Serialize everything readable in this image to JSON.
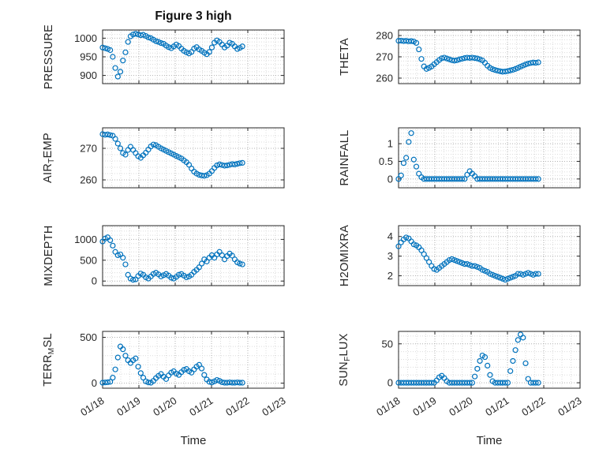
{
  "chart_data": {
    "type": "scatter",
    "title": "Figure 3 high",
    "xlabel": "Time",
    "marker": "open-circle",
    "marker_color": "#0072BD",
    "grid": {
      "major_color": "#b0b0b0",
      "minor_color": "#dcdcdc",
      "style": "dotted",
      "minor": true
    },
    "x_axis": {
      "lim": [
        0,
        5
      ],
      "tick_values": [
        0,
        1,
        2,
        3,
        4,
        5
      ],
      "tick_labels": [
        "01/18",
        "01/19",
        "01/20",
        "01/21",
        "01/22",
        "01/23"
      ],
      "minor_step": 0.25,
      "units": "days since 01/18"
    },
    "x": [
      0,
      0.07,
      0.14,
      0.21,
      0.28,
      0.35,
      0.42,
      0.49,
      0.56,
      0.63,
      0.7,
      0.77,
      0.84,
      0.91,
      0.98,
      1.05,
      1.12,
      1.19,
      1.26,
      1.33,
      1.4,
      1.47,
      1.54,
      1.61,
      1.68,
      1.75,
      1.82,
      1.89,
      1.96,
      2.03,
      2.1,
      2.17,
      2.24,
      2.31,
      2.38,
      2.45,
      2.52,
      2.59,
      2.66,
      2.73,
      2.8,
      2.87,
      2.94,
      3.01,
      3.08,
      3.15,
      3.22,
      3.29,
      3.36,
      3.43,
      3.5,
      3.57,
      3.64,
      3.71,
      3.78,
      3.85
    ],
    "subplots": [
      {
        "id": "pressure",
        "label": "PRESSURE",
        "ylabel_segments": [
          {
            "text": "PRESSURE",
            "sub": false
          }
        ],
        "ylim": [
          878,
          1022
        ],
        "yticks": [
          900,
          950,
          1000
        ],
        "y": [
          975,
          973,
          971,
          968,
          950,
          920,
          897,
          910,
          940,
          962,
          990,
          1005,
          1010,
          1012,
          1010,
          1008,
          1009,
          1006,
          1002,
          1000,
          996,
          992,
          990,
          987,
          985,
          980,
          976,
          973,
          978,
          983,
          979,
          972,
          966,
          962,
          959,
          963,
          972,
          976,
          970,
          966,
          961,
          957,
          963,
          975,
          988,
          994,
          990,
          983,
          975,
          980,
          988,
          985,
          978,
          971,
          974,
          978
        ]
      },
      {
        "id": "theta",
        "label": "THETA",
        "ylabel_segments": [
          {
            "text": "THETA",
            "sub": false
          }
        ],
        "ylim": [
          257.4,
          282.6
        ],
        "yticks": [
          260,
          270,
          280
        ],
        "y": [
          277.5,
          277.6,
          277.4,
          277.5,
          277.3,
          277.4,
          277.2,
          276.5,
          273.5,
          269,
          265.5,
          264.3,
          264.8,
          265.5,
          266.5,
          267.5,
          268.5,
          269.3,
          269.6,
          269.2,
          268.8,
          268.4,
          268.2,
          268.4,
          268.8,
          269.1,
          269.4,
          269.6,
          269.5,
          269.6,
          269.4,
          269.2,
          268.8,
          268.3,
          267.2,
          265.8,
          264.8,
          264.2,
          263.8,
          263.5,
          263.2,
          263.0,
          263.1,
          263.3,
          263.6,
          263.9,
          264.3,
          264.8,
          265.4,
          265.9,
          266.4,
          266.8,
          267.1,
          267.3,
          267.2,
          267.4
        ]
      },
      {
        "id": "air-temp",
        "label": "AIR_TEMP",
        "ylabel_segments": [
          {
            "text": "AIR",
            "sub": false
          },
          {
            "text": "T",
            "sub": true
          },
          {
            "text": "EMP",
            "sub": false
          }
        ],
        "ylim": [
          257.5,
          276.5
        ],
        "yticks": [
          260,
          270
        ],
        "y": [
          274.5,
          274.3,
          274.4,
          274.2,
          274.0,
          273.0,
          271.5,
          270.0,
          268.5,
          268.0,
          269.5,
          270.5,
          269.5,
          268.5,
          267.5,
          267.0,
          267.8,
          268.6,
          269.6,
          270.6,
          271.2,
          271.0,
          270.5,
          270.0,
          269.6,
          269.2,
          268.8,
          268.4,
          268.0,
          267.6,
          267.2,
          266.8,
          266.2,
          265.6,
          264.8,
          263.6,
          262.6,
          262.0,
          261.6,
          261.4,
          261.3,
          261.5,
          262.0,
          262.8,
          263.8,
          264.6,
          264.9,
          264.7,
          264.5,
          264.6,
          264.8,
          265.0,
          264.9,
          265.1,
          265.3,
          265.4
        ]
      },
      {
        "id": "rainfall",
        "label": "RAINFALL",
        "ylabel_segments": [
          {
            "text": "RAINFALL",
            "sub": false
          }
        ],
        "ylim": [
          -0.25,
          1.45
        ],
        "yticks": [
          0,
          0.5,
          1
        ],
        "y": [
          0,
          0.1,
          0.45,
          0.6,
          1.05,
          1.3,
          0.55,
          0.35,
          0.15,
          0.05,
          0,
          0,
          0,
          0,
          0,
          0,
          0,
          0,
          0,
          0,
          0,
          0,
          0,
          0,
          0,
          0,
          0,
          0.12,
          0.22,
          0.15,
          0.08,
          0,
          0,
          0,
          0,
          0,
          0,
          0,
          0,
          0,
          0,
          0,
          0,
          0,
          0,
          0,
          0,
          0,
          0,
          0,
          0,
          0,
          0,
          0,
          0,
          0
        ]
      },
      {
        "id": "mixdepth",
        "label": "MIXDEPTH",
        "ylabel_segments": [
          {
            "text": "MIXDEPTH",
            "sub": false
          }
        ],
        "ylim": [
          -110,
          1330
        ],
        "yticks": [
          0,
          500,
          1000
        ],
        "y": [
          950,
          1020,
          1050,
          980,
          850,
          700,
          620,
          640,
          560,
          400,
          150,
          60,
          30,
          40,
          120,
          180,
          150,
          90,
          60,
          110,
          170,
          200,
          160,
          110,
          140,
          170,
          130,
          80,
          60,
          100,
          150,
          170,
          130,
          90,
          110,
          150,
          220,
          270,
          330,
          420,
          520,
          470,
          560,
          620,
          560,
          640,
          700,
          620,
          520,
          600,
          660,
          610,
          520,
          450,
          420,
          400
        ]
      },
      {
        "id": "h2omixra",
        "label": "H2OMIXRA",
        "ylabel_segments": [
          {
            "text": "H2OMIXRA",
            "sub": false
          }
        ],
        "ylim": [
          1.5,
          4.55
        ],
        "yticks": [
          2,
          3,
          4
        ],
        "y": [
          3.5,
          3.7,
          3.85,
          3.95,
          3.9,
          3.75,
          3.6,
          3.55,
          3.45,
          3.3,
          3.1,
          2.9,
          2.7,
          2.5,
          2.35,
          2.3,
          2.4,
          2.5,
          2.6,
          2.7,
          2.8,
          2.85,
          2.8,
          2.75,
          2.7,
          2.65,
          2.6,
          2.6,
          2.55,
          2.5,
          2.5,
          2.45,
          2.4,
          2.3,
          2.25,
          2.2,
          2.1,
          2.05,
          2.0,
          1.95,
          1.9,
          1.85,
          1.8,
          1.85,
          1.9,
          1.95,
          2.0,
          2.1,
          2.1,
          2.05,
          2.1,
          2.15,
          2.1,
          2.05,
          2.1,
          2.1
        ]
      },
      {
        "id": "terr-msl",
        "label": "TERR_MSL",
        "ylabel_segments": [
          {
            "text": "TERR",
            "sub": false
          },
          {
            "text": "M",
            "sub": true
          },
          {
            "text": "SL",
            "sub": false
          }
        ],
        "ylim": [
          -55,
          565
        ],
        "yticks": [
          0,
          500
        ],
        "y": [
          5,
          8,
          10,
          15,
          60,
          150,
          280,
          400,
          370,
          300,
          250,
          220,
          250,
          270,
          180,
          110,
          60,
          20,
          8,
          5,
          25,
          55,
          80,
          100,
          70,
          45,
          85,
          115,
          130,
          105,
          90,
          120,
          145,
          155,
          130,
          115,
          150,
          180,
          200,
          160,
          90,
          40,
          15,
          8,
          20,
          35,
          25,
          10,
          5,
          5,
          8,
          5,
          5,
          8,
          5,
          5
        ]
      },
      {
        "id": "sun-flux",
        "label": "SUN_FLUX",
        "ylabel_segments": [
          {
            "text": "SUN",
            "sub": false
          },
          {
            "text": "F",
            "sub": true
          },
          {
            "text": "LUX",
            "sub": false
          }
        ],
        "ylim": [
          -7,
          66
        ],
        "yticks": [
          0,
          50
        ],
        "y": [
          0,
          0,
          0,
          0,
          0,
          0,
          0,
          0,
          0,
          0,
          0,
          0,
          0,
          0,
          0,
          3,
          7,
          9,
          6,
          2,
          0,
          0,
          0,
          0,
          0,
          0,
          0,
          0,
          0,
          0,
          8,
          18,
          28,
          35,
          33,
          22,
          10,
          2,
          0,
          0,
          0,
          0,
          0,
          0,
          15,
          28,
          42,
          55,
          62,
          58,
          25,
          5,
          0,
          0,
          0,
          0
        ]
      }
    ]
  }
}
